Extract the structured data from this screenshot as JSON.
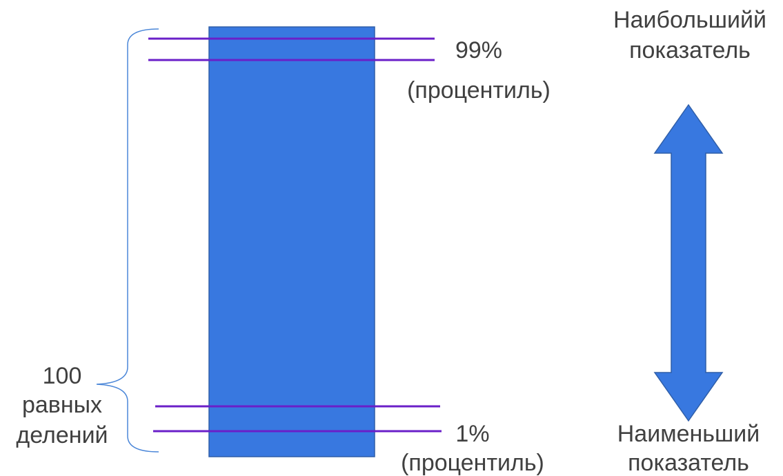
{
  "labels": {
    "top_percentile_value": "99%",
    "top_percentile_word": "(процентиль)",
    "bottom_percentile_value": "1%",
    "bottom_percentile_word": "(процентиль)",
    "divisions_line1": "100",
    "divisions_line2": "равных",
    "divisions_line3": "делений",
    "highest_line1": "Наибольшийй",
    "highest_line2": "показатель",
    "lowest_line1": "Наименьший",
    "lowest_line2": "показатель"
  },
  "colors": {
    "bar_fill": "#3878E0",
    "bar_stroke": "#2F5EA8",
    "percentile_line": "#6A1FC8",
    "brace": "#4A86D8",
    "arrow_fill": "#3878E0",
    "arrow_stroke": "#2F5EA8",
    "text": "#404040"
  }
}
